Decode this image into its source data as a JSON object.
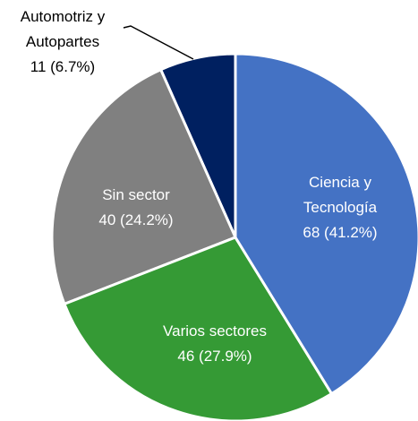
{
  "chart_data": {
    "type": "pie",
    "categories": [
      "Ciencia y Tecnología",
      "Varios sectores",
      "Sin sector",
      "Automotriz y Autopartes"
    ],
    "values": [
      68,
      46,
      40,
      11
    ],
    "value_labels": [
      "68 (41.2%)",
      "46 (27.9%)",
      "40 (24.2%)",
      "11 (6.7%)"
    ],
    "colors": [
      "#4472c4",
      "#359a35",
      "#808080",
      "#002060"
    ]
  }
}
